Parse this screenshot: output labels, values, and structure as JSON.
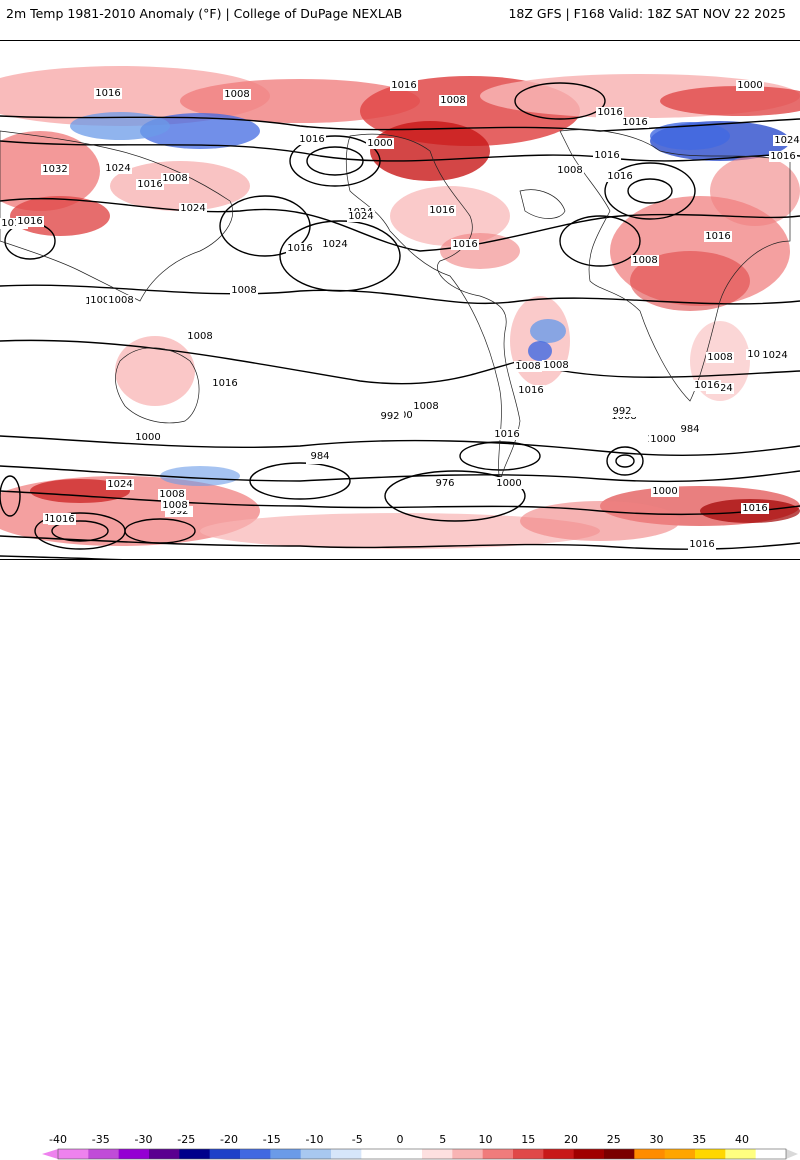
{
  "header": {
    "left_title": "2m Temp 1981-2010 Anomaly (°F) | College of DuPage NEXLAB",
    "right_title": "18Z GFS | F168 Valid: 18Z SAT NOV 22 2025"
  },
  "map": {
    "isobar_labels": [
      "1016",
      "1008",
      "1016",
      "1008",
      "1000",
      "1016",
      "1024",
      "1032",
      "1024",
      "1016",
      "1024",
      "1008",
      "1016",
      "1016",
      "1016",
      "1024",
      "1008",
      "1016",
      "1024",
      "1000",
      "1016",
      "1008",
      "1008",
      "1008",
      "1008",
      "1016",
      "1016",
      "1008",
      "1008",
      "1016",
      "1016",
      "1008",
      "1016",
      "992",
      "1008",
      "1000",
      "984",
      "976",
      "1000",
      "1000",
      "992",
      "1024",
      "1008",
      "1016",
      "1000",
      "984",
      "992",
      "1008",
      "1016",
      "1024",
      "1016",
      "1008",
      "1024",
      "1016",
      "1016",
      "1024",
      "1016",
      "1016",
      "1000",
      "1008",
      "1008",
      "1016",
      "1016",
      "1000",
      "984",
      "992",
      "1000",
      "1008",
      "1016"
    ]
  },
  "colorbar": {
    "tick_labels": [
      "-40",
      "-35",
      "-30",
      "-25",
      "-20",
      "-15",
      "-10",
      "-5",
      "0",
      "5",
      "10",
      "15",
      "20",
      "25",
      "30",
      "35",
      "40"
    ],
    "colors": [
      "#ee82ee",
      "#c04cd8",
      "#9400d3",
      "#5a0090",
      "#00008b",
      "#1e40c8",
      "#4169e1",
      "#6b9be8",
      "#a8c8f0",
      "#d6e6fa",
      "#ffffff",
      "#ffffff",
      "#fde0e0",
      "#f8b4b4",
      "#f07c7c",
      "#e04848",
      "#c81818",
      "#a00000",
      "#7a0000",
      "#ff8c00",
      "#ffa500",
      "#ffd700",
      "#ffff80",
      "#ffffff"
    ]
  }
}
